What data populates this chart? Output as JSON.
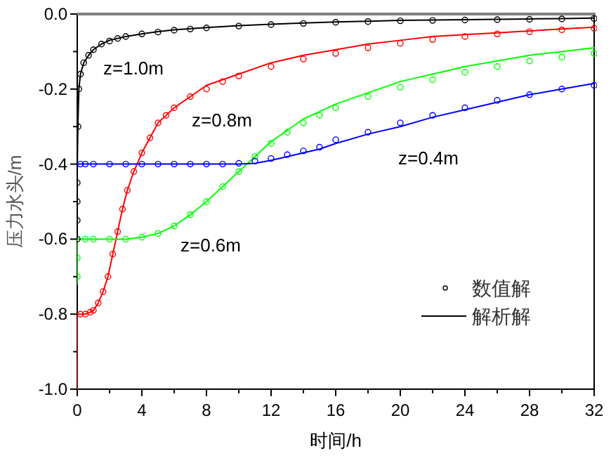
{
  "chart_data": {
    "type": "line",
    "xlabel": "时间/h",
    "ylabel": "压力水头/m",
    "xlim": [
      0,
      32
    ],
    "ylim": [
      -1.0,
      0.0
    ],
    "xticks": [
      0,
      {
        "value": 2,
        "label": null
      },
      4,
      {
        "value": 6,
        "label": null
      },
      8,
      {
        "value": 10,
        "label": null
      },
      12,
      {
        "value": 14,
        "label": null
      },
      16,
      {
        "value": 18,
        "label": null
      },
      20,
      {
        "value": 22,
        "label": null
      },
      24,
      {
        "value": 26,
        "label": null
      },
      28,
      {
        "value": 30,
        "label": null
      },
      32
    ],
    "yticks": [
      {
        "value": -1.0,
        "label": "-1.0"
      },
      {
        "value": -0.9,
        "label": null
      },
      {
        "value": -0.8,
        "label": "-0.8"
      },
      {
        "value": -0.7,
        "label": null
      },
      {
        "value": -0.6,
        "label": "-0.6"
      },
      {
        "value": -0.5,
        "label": null
      },
      {
        "value": -0.4,
        "label": "-0.4"
      },
      {
        "value": -0.3,
        "label": null
      },
      {
        "value": -0.2,
        "label": "-0.2"
      },
      {
        "value": -0.1,
        "label": null
      },
      {
        "value": 0.0,
        "label": "0.0"
      }
    ],
    "grid": false,
    "legend": "bottom right",
    "annotations": [
      "z=1.0m",
      "z=0.8m",
      "z=0.4m",
      "z=0.6m"
    ],
    "series": [
      {
        "name": "解析解",
        "type": "line",
        "line_style": "solid",
        "color": "#000000",
        "x": [
          0,
          0,
          0.05,
          0.1,
          0.2,
          0.4,
          0.7,
          1,
          1.5,
          2,
          3,
          4,
          5,
          6,
          8,
          10,
          12,
          14,
          16,
          18,
          20,
          22,
          24,
          26,
          28,
          30,
          32
        ],
        "values": [
          -1.0,
          -0.4,
          -0.28,
          -0.2,
          -0.16,
          -0.13,
          -0.11,
          -0.095,
          -0.08,
          -0.07,
          -0.06,
          -0.053,
          -0.047,
          -0.042,
          -0.036,
          -0.031,
          -0.027,
          -0.024,
          -0.021,
          -0.019,
          -0.017,
          -0.016,
          -0.015,
          -0.014,
          -0.013,
          -0.012,
          -0.011
        ]
      },
      {
        "type": "line",
        "line_style": "solid",
        "color": "#ff0000",
        "x": [
          0,
          0,
          0.5,
          0.8,
          1,
          1.3,
          1.6,
          1.9,
          2.2,
          2.5,
          2.8,
          3.1,
          3.5,
          4,
          4.5,
          5,
          6,
          7,
          8,
          10,
          12,
          14,
          16,
          18,
          20,
          22,
          24,
          26,
          28,
          30,
          32
        ],
        "values": [
          -1.0,
          -0.8,
          -0.8,
          -0.795,
          -0.79,
          -0.77,
          -0.74,
          -0.7,
          -0.64,
          -0.58,
          -0.52,
          -0.47,
          -0.42,
          -0.37,
          -0.33,
          -0.29,
          -0.25,
          -0.22,
          -0.19,
          -0.16,
          -0.13,
          -0.11,
          -0.095,
          -0.08,
          -0.07,
          -0.06,
          -0.055,
          -0.05,
          -0.045,
          -0.04,
          -0.035
        ]
      },
      {
        "type": "line",
        "line_style": "solid",
        "color": "#00ff00",
        "x": [
          0,
          0,
          1,
          2,
          3,
          4,
          5,
          6,
          7,
          8,
          9,
          10,
          11,
          12,
          13,
          14,
          15,
          16,
          18,
          20,
          22,
          24,
          26,
          28,
          30,
          32
        ],
        "values": [
          -0.72,
          -0.6,
          -0.6,
          -0.6,
          -0.6,
          -0.595,
          -0.585,
          -0.565,
          -0.535,
          -0.5,
          -0.46,
          -0.42,
          -0.38,
          -0.34,
          -0.31,
          -0.28,
          -0.26,
          -0.24,
          -0.21,
          -0.18,
          -0.16,
          -0.14,
          -0.125,
          -0.11,
          -0.1,
          -0.09
        ]
      },
      {
        "type": "line",
        "line_style": "solid",
        "color": "#0000ff",
        "x": [
          0,
          1,
          2,
          4,
          6,
          8,
          10,
          11,
          12,
          13,
          14,
          15,
          16,
          18,
          20,
          22,
          24,
          26,
          28,
          30,
          32
        ],
        "values": [
          -0.4,
          -0.4,
          -0.4,
          -0.4,
          -0.4,
          -0.4,
          -0.4,
          -0.398,
          -0.39,
          -0.38,
          -0.37,
          -0.36,
          -0.345,
          -0.32,
          -0.3,
          -0.275,
          -0.255,
          -0.235,
          -0.215,
          -0.2,
          -0.185
        ]
      },
      {
        "name": "数值解",
        "type": "scatter",
        "marker": "circle",
        "color": "#000000",
        "x": [
          0,
          0,
          0,
          0,
          0.05,
          0.1,
          0.2,
          0.4,
          0.7,
          1,
          1.5,
          2,
          2.5,
          3,
          4,
          5,
          6,
          7,
          8,
          10,
          12,
          14,
          16,
          18,
          20,
          22,
          24,
          26,
          28,
          30,
          32
        ],
        "values": [
          -0.6,
          -0.55,
          -0.5,
          -0.45,
          -0.3,
          -0.2,
          -0.16,
          -0.13,
          -0.11,
          -0.095,
          -0.08,
          -0.072,
          -0.065,
          -0.06,
          -0.053,
          -0.048,
          -0.043,
          -0.04,
          -0.037,
          -0.032,
          -0.028,
          -0.025,
          -0.022,
          -0.02,
          -0.018,
          -0.017,
          -0.016,
          -0.015,
          -0.014,
          -0.013,
          -0.012
        ]
      },
      {
        "type": "scatter",
        "marker": "circle",
        "color": "#ff0000",
        "x": [
          0.2,
          0.5,
          0.8,
          1,
          1.3,
          1.6,
          1.9,
          2.2,
          2.5,
          2.8,
          3.1,
          3.5,
          4,
          4.5,
          5,
          5.5,
          6,
          7,
          8,
          9,
          10,
          12,
          14,
          16,
          18,
          20,
          22,
          24,
          26,
          28,
          30,
          32
        ],
        "values": [
          -0.8,
          -0.8,
          -0.795,
          -0.79,
          -0.77,
          -0.74,
          -0.7,
          -0.64,
          -0.58,
          -0.52,
          -0.47,
          -0.42,
          -0.37,
          -0.33,
          -0.29,
          -0.27,
          -0.25,
          -0.22,
          -0.2,
          -0.18,
          -0.165,
          -0.14,
          -0.12,
          -0.105,
          -0.09,
          -0.078,
          -0.068,
          -0.06,
          -0.053,
          -0.047,
          -0.042,
          -0.038
        ]
      },
      {
        "type": "scatter",
        "marker": "circle",
        "color": "#00ff00",
        "x": [
          0,
          0,
          0.5,
          1,
          2,
          3,
          4,
          5,
          6,
          7,
          8,
          9,
          10,
          11,
          12,
          13,
          14,
          15,
          16,
          18,
          20,
          22,
          24,
          26,
          28,
          30,
          32
        ],
        "values": [
          -0.7,
          -0.65,
          -0.6,
          -0.6,
          -0.6,
          -0.6,
          -0.595,
          -0.585,
          -0.565,
          -0.535,
          -0.5,
          -0.46,
          -0.42,
          -0.38,
          -0.345,
          -0.315,
          -0.29,
          -0.27,
          -0.25,
          -0.22,
          -0.195,
          -0.175,
          -0.155,
          -0.14,
          -0.125,
          -0.115,
          -0.105
        ]
      },
      {
        "type": "scatter",
        "marker": "circle",
        "color": "#0000ff",
        "x": [
          0.2,
          0.5,
          1,
          2,
          3,
          4,
          5,
          6,
          7,
          8,
          9,
          10,
          11,
          12,
          13,
          14,
          15,
          16,
          18,
          20,
          22,
          24,
          26,
          28,
          30,
          32
        ],
        "values": [
          -0.4,
          -0.4,
          -0.4,
          -0.4,
          -0.4,
          -0.4,
          -0.4,
          -0.4,
          -0.4,
          -0.4,
          -0.4,
          -0.398,
          -0.392,
          -0.385,
          -0.375,
          -0.365,
          -0.355,
          -0.335,
          -0.315,
          -0.29,
          -0.27,
          -0.25,
          -0.23,
          -0.215,
          -0.2,
          -0.19
        ]
      }
    ]
  }
}
